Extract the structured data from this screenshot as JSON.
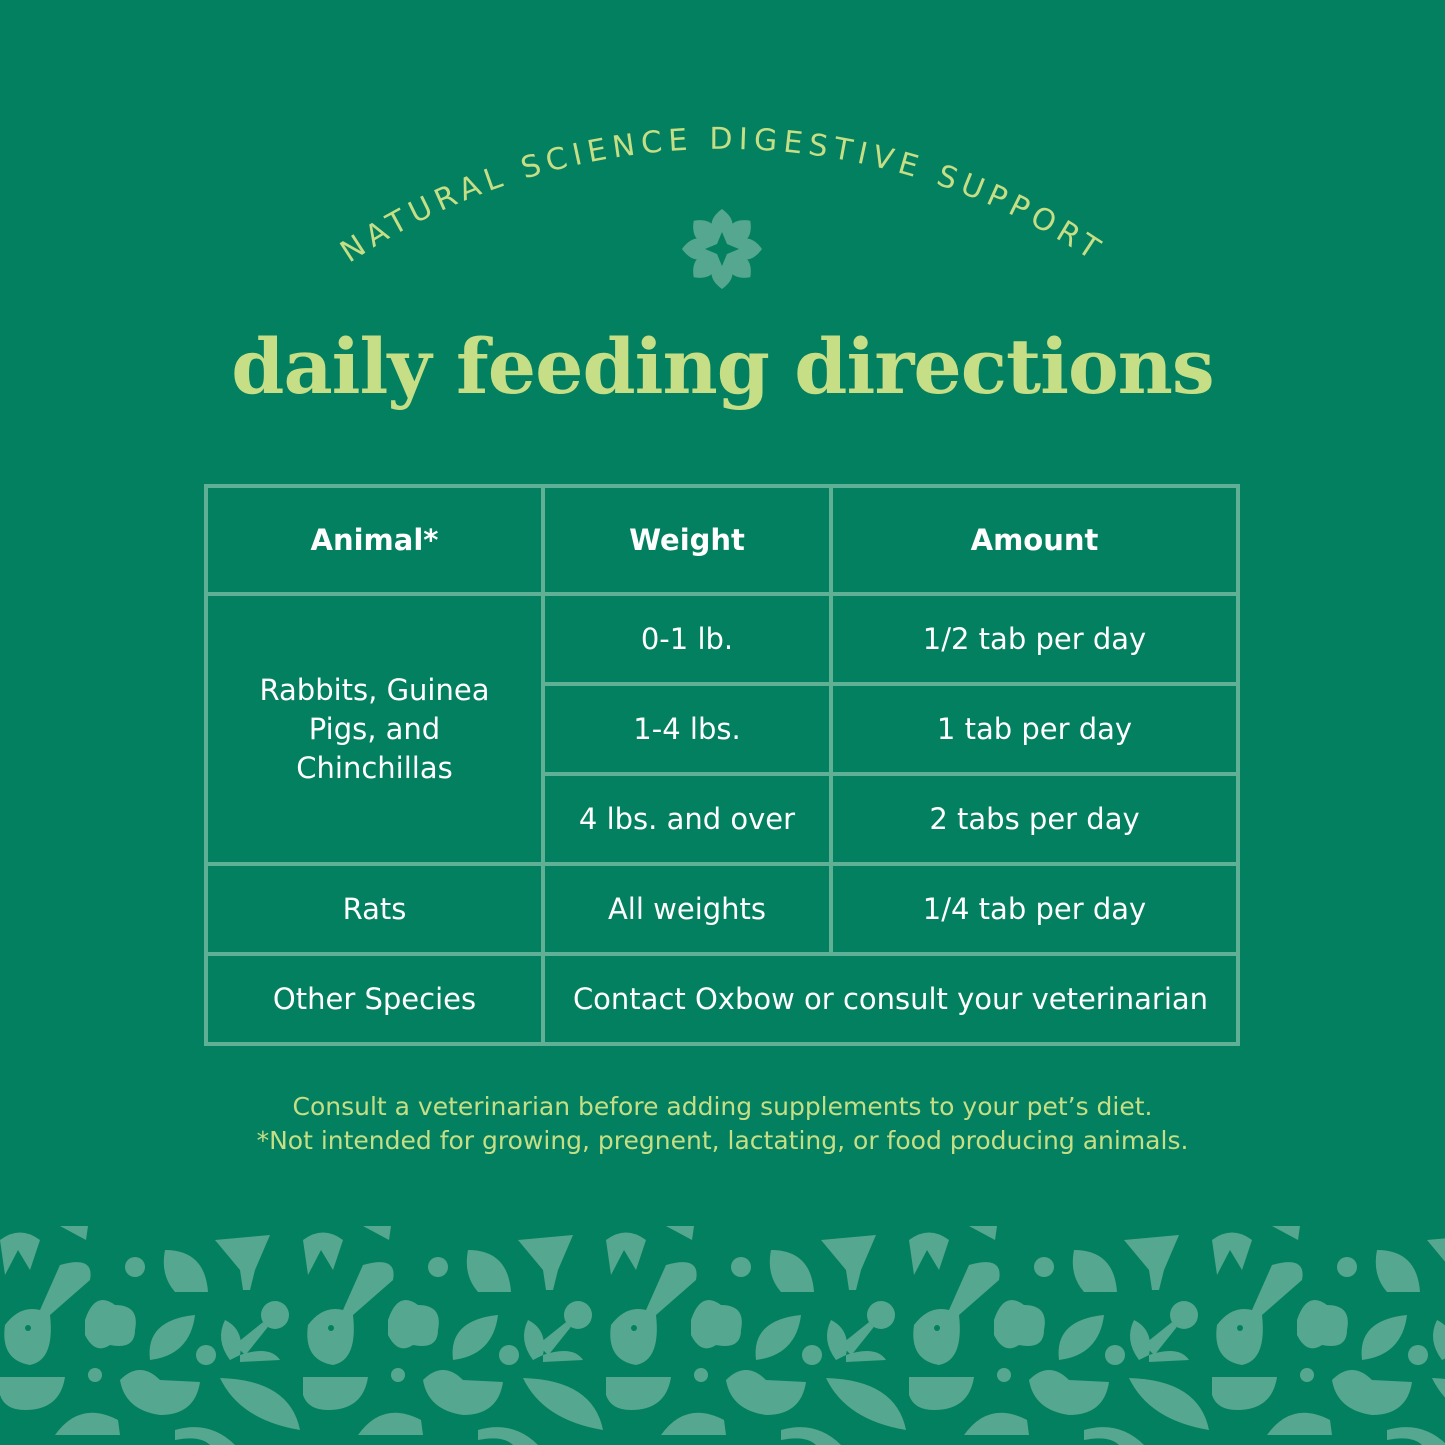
{
  "header": {
    "arc_text": "NATURAL SCIENCE DIGESTIVE SUPPORT",
    "icon": "flower-icon",
    "title": "daily feeding directions"
  },
  "table": {
    "headers": [
      "Animal*",
      "Weight",
      "Amount"
    ],
    "group1": {
      "animal": "Rabbits, Guinea Pigs, and Chinchillas",
      "rows": [
        {
          "weight": "0-1 lb.",
          "amount": "1/2 tab per day"
        },
        {
          "weight": "1-4 lbs.",
          "amount": "1 tab per day"
        },
        {
          "weight": "4 lbs. and over",
          "amount": "2 tabs per day"
        }
      ]
    },
    "rats": {
      "animal": "Rats",
      "weight": "All weights",
      "amount": "1/4 tab per day"
    },
    "other": {
      "animal": "Other Species",
      "note": "Contact Oxbow or consult your veterinarian"
    }
  },
  "notes": [
    "Consult a veterinarian before adding supplements to your pet’s diet.",
    "*Not intended for growing, pregnent, lactating, or food producing animals."
  ],
  "colors": {
    "background": "#03805f",
    "accent": "#c6de86",
    "pattern": "#55a78f",
    "border": "#5fb095"
  }
}
